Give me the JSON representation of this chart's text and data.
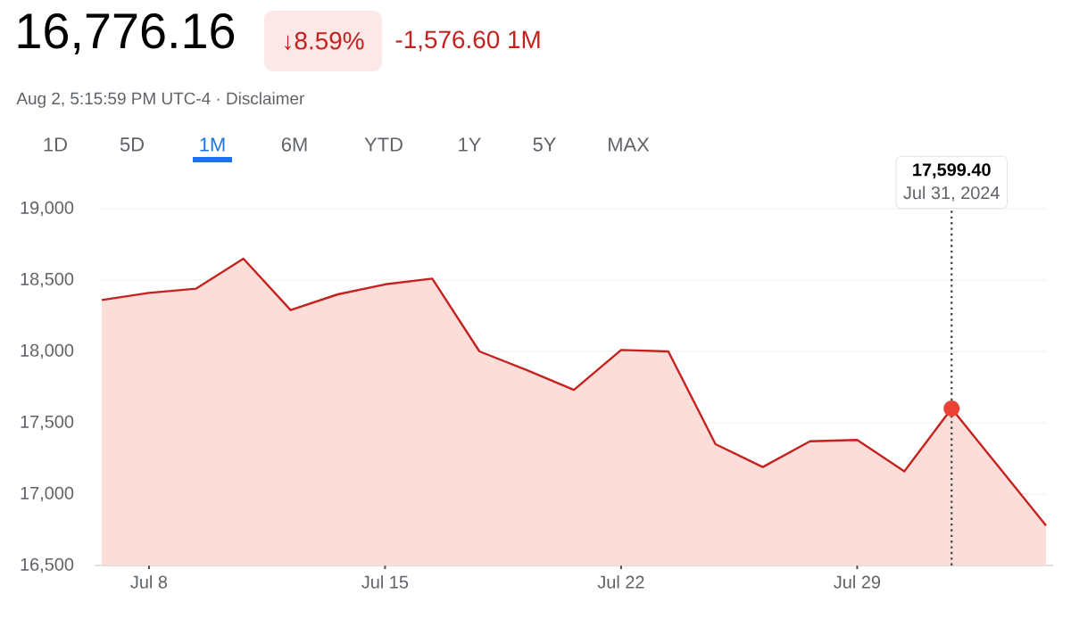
{
  "chart_data": {
    "type": "area",
    "title": "16,776.16",
    "subtitle": "Aug 2, 5:15:59 PM UTC-4 · Disclaimer",
    "annotations": [
      "↓8.59%",
      "-1,576.60 1M",
      "1D",
      "5D",
      "1M",
      "6M",
      "YTD",
      "1Y",
      "5Y",
      "MAX",
      "17,599.40",
      "Jul 31, 2024"
    ],
    "categories": [
      null,
      "Jul 8",
      null,
      null,
      null,
      null,
      "Jul 15",
      null,
      null,
      null,
      null,
      "Jul 22",
      null,
      null,
      null,
      null,
      "Jul 29",
      null,
      null,
      null,
      null
    ],
    "series": [
      {
        "color": "#c5221f",
        "values": [
          18360,
          18410,
          18440,
          18650,
          18290,
          18400,
          18470,
          18510,
          18000,
          17870,
          17730,
          18010,
          18000,
          17350,
          17190,
          17370,
          17380,
          17160,
          17600,
          17190,
          16780
        ]
      }
    ],
    "ylim": [
      16500,
      19000
    ],
    "yticks": [
      {
        "value": 16500,
        "label": "16,500"
      },
      {
        "value": 17000,
        "label": "17,000"
      },
      {
        "value": 17500,
        "label": "17,500"
      },
      {
        "value": 18000,
        "label": "18,000"
      },
      {
        "value": 18500,
        "label": "18,500"
      },
      {
        "value": 19000,
        "label": "19,000"
      }
    ],
    "grid": "y",
    "line_style": "solid",
    "marker": "none"
  }
}
